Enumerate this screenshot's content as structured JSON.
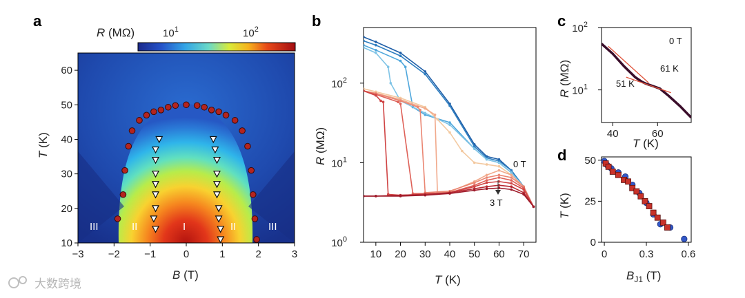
{
  "watermark": "大数跨境",
  "chart_data": [
    {
      "panel": "a",
      "type": "heatmap",
      "xlabel": {
        "var": "B",
        "unit": " (T)"
      },
      "ylabel": {
        "var": "T",
        "unit": " (K)"
      },
      "xlim": [
        -3,
        3
      ],
      "ylim": [
        10,
        65
      ],
      "xticks": [
        "−3",
        "−2",
        "−1",
        "0",
        "1",
        "2",
        "3"
      ],
      "yticks": [
        "10",
        "20",
        "30",
        "40",
        "50",
        "60"
      ],
      "colorbar": {
        "label_var": "R",
        "label_unit": " (MΩ)",
        "scale": "log",
        "range": [
          4,
          300
        ],
        "ticks": [
          "10",
          "10"
        ],
        "tick_exponents": [
          "1",
          "2"
        ]
      },
      "region_labels": [
        "III",
        "II",
        "I",
        "II",
        "III"
      ],
      "boundary_circles": [
        {
          "B": -1.9,
          "T": 17
        },
        {
          "B": -1.75,
          "T": 24
        },
        {
          "B": -1.7,
          "T": 31
        },
        {
          "B": -1.6,
          "T": 38
        },
        {
          "B": -1.5,
          "T": 42.5
        },
        {
          "B": -1.3,
          "T": 45.5
        },
        {
          "B": -1.1,
          "T": 47
        },
        {
          "B": -0.9,
          "T": 48
        },
        {
          "B": -0.7,
          "T": 48.5
        },
        {
          "B": -0.5,
          "T": 49.3
        },
        {
          "B": -0.3,
          "T": 49.8
        },
        {
          "B": 0,
          "T": 50
        },
        {
          "B": 0.3,
          "T": 49.8
        },
        {
          "B": 0.5,
          "T": 49.3
        },
        {
          "B": 0.7,
          "T": 48.5
        },
        {
          "B": 0.9,
          "T": 48
        },
        {
          "B": 1.1,
          "T": 47
        },
        {
          "B": 1.35,
          "T": 45.5
        },
        {
          "B": 1.55,
          "T": 42.5
        },
        {
          "B": 1.7,
          "T": 38
        },
        {
          "B": 1.8,
          "T": 31
        },
        {
          "B": 1.85,
          "T": 24
        },
        {
          "B": 1.9,
          "T": 17
        },
        {
          "B": 1.95,
          "T": 11
        }
      ],
      "triangles": [
        {
          "B": -0.75,
          "T": 40
        },
        {
          "B": -0.85,
          "T": 37
        },
        {
          "B": -0.85,
          "T": 34
        },
        {
          "B": -0.85,
          "T": 30
        },
        {
          "B": -0.85,
          "T": 27
        },
        {
          "B": -0.85,
          "T": 24
        },
        {
          "B": -0.85,
          "T": 20
        },
        {
          "B": -0.9,
          "T": 17
        },
        {
          "B": -0.85,
          "T": 14
        },
        {
          "B": 0.75,
          "T": 40
        },
        {
          "B": 0.8,
          "T": 37
        },
        {
          "B": 0.85,
          "T": 34
        },
        {
          "B": 0.85,
          "T": 30
        },
        {
          "B": 0.85,
          "T": 27
        },
        {
          "B": 0.85,
          "T": 24
        },
        {
          "B": 0.9,
          "T": 20
        },
        {
          "B": 0.9,
          "T": 17
        },
        {
          "B": 0.95,
          "T": 14
        },
        {
          "B": 0.95,
          "T": 11
        }
      ]
    },
    {
      "panel": "b",
      "type": "line",
      "xlabel": {
        "var": "T",
        "unit": " (K)"
      },
      "ylabel": {
        "var": "R",
        "unit": " (MΩ)"
      },
      "xlim": [
        5,
        75
      ],
      "ylim": [
        1,
        500
      ],
      "yscale": "log",
      "xticks": [
        "10",
        "20",
        "30",
        "40",
        "50",
        "60",
        "70"
      ],
      "yticks": [
        "10",
        "10",
        "10"
      ],
      "ytick_exponents": [
        "0",
        "1",
        "2"
      ],
      "field_labels": [
        "0 T",
        "3 T"
      ],
      "series": [
        {
          "values_x": [
            5,
            10,
            20,
            30,
            40,
            50,
            55,
            60,
            65,
            70,
            74
          ],
          "values_y": [
            380,
            330,
            240,
            140,
            55,
            17,
            12,
            11,
            8,
            5,
            2.8
          ]
        },
        {
          "values_x": [
            5,
            10,
            20,
            30,
            40,
            50,
            55,
            60,
            65,
            70,
            74
          ],
          "values_y": [
            340,
            300,
            220,
            130,
            52,
            16,
            11.5,
            10.5,
            8,
            5,
            2.8
          ]
        },
        {
          "values_x": [
            5,
            10,
            20,
            22,
            25,
            30,
            40,
            50,
            55,
            60,
            65,
            70,
            74
          ],
          "values_y": [
            300,
            260,
            190,
            160,
            50,
            40,
            32,
            15,
            11,
            10,
            7.5,
            5,
            2.8
          ]
        },
        {
          "values_x": [
            5,
            10,
            15,
            16,
            20,
            30,
            40,
            50,
            55,
            60,
            65,
            70,
            74
          ],
          "values_y": [
            280,
            240,
            160,
            100,
            60,
            42,
            30,
            15,
            11,
            10,
            7.5,
            5,
            2.8
          ]
        },
        {
          "values_x": [
            5,
            10,
            20,
            30,
            35,
            40,
            45,
            50,
            55,
            60,
            65,
            70,
            74
          ],
          "values_y": [
            85,
            78,
            65,
            50,
            35,
            24,
            14,
            10,
            9.5,
            9,
            7,
            5,
            2.8
          ]
        },
        {
          "values_x": [
            5,
            10,
            20,
            30,
            34,
            35,
            40,
            50,
            55,
            60,
            65,
            70,
            74
          ],
          "values_y": [
            80,
            75,
            62,
            48,
            40,
            4.2,
            4.3,
            5.8,
            7,
            8,
            7,
            5,
            2.8
          ]
        },
        {
          "values_x": [
            5,
            10,
            20,
            27,
            28,
            30,
            40,
            50,
            55,
            60,
            65,
            70,
            74
          ],
          "values_y": [
            80,
            74,
            60,
            50,
            46,
            4.2,
            4.4,
            5.6,
            6.5,
            7,
            6.5,
            5,
            2.8
          ]
        },
        {
          "values_x": [
            5,
            10,
            19,
            20,
            25,
            30,
            40,
            50,
            55,
            60,
            65,
            70,
            74
          ],
          "values_y": [
            80,
            72,
            58,
            55,
            4.1,
            4.1,
            4.2,
            5.2,
            6,
            6.5,
            6,
            4.8,
            2.8
          ]
        },
        {
          "values_x": [
            5,
            10,
            12,
            13,
            15,
            20,
            30,
            40,
            50,
            55,
            60,
            65,
            70,
            74
          ],
          "values_y": [
            80,
            70,
            60,
            58,
            4.0,
            3.9,
            4.0,
            4.2,
            5.0,
            5.6,
            5.8,
            5.5,
            4.6,
            2.8
          ]
        },
        {
          "values_x": [
            5,
            10,
            20,
            30,
            40,
            50,
            55,
            60,
            65,
            70,
            74
          ],
          "values_y": [
            3.8,
            3.8,
            3.9,
            4.0,
            4.2,
            4.7,
            5.0,
            5.2,
            5.0,
            4.2,
            2.8
          ]
        },
        {
          "values_x": [
            5,
            10,
            20,
            30,
            40,
            50,
            55,
            60,
            65,
            70,
            74
          ],
          "values_y": [
            3.8,
            3.8,
            3.8,
            3.9,
            4.1,
            4.5,
            4.7,
            4.8,
            4.6,
            4.0,
            2.8
          ]
        }
      ]
    },
    {
      "panel": "c",
      "type": "line",
      "xlabel": {
        "var": "T",
        "unit": " (K)"
      },
      "ylabel": {
        "var": "R",
        "unit": " (MΩ)"
      },
      "xlim": [
        35,
        75
      ],
      "ylim": [
        3,
        100
      ],
      "yscale": "log",
      "xticks": [
        "40",
        "60"
      ],
      "yticks": [
        "10",
        "10"
      ],
      "ytick_exponents": [
        "1",
        "2"
      ],
      "field_label": "0 T",
      "annotations": [
        "51 K",
        "61 K"
      ],
      "values_x": [
        35,
        40,
        45,
        50,
        53,
        55,
        58,
        61,
        65,
        70,
        75
      ],
      "values_y": [
        55,
        38,
        24,
        16,
        13.5,
        12.5,
        11.5,
        10.5,
        8,
        5.5,
        3.6
      ]
    },
    {
      "panel": "d",
      "type": "scatter",
      "xlabel": {
        "var": "B",
        "sub": "J1",
        "unit": " (T)"
      },
      "ylabel": {
        "var": "T",
        "unit": " (K)"
      },
      "xlim": [
        -0.02,
        0.62
      ],
      "ylim": [
        0,
        52
      ],
      "xticks": [
        "0",
        "0.3",
        "0.6"
      ],
      "yticks": [
        "0",
        "25",
        "50"
      ],
      "series": [
        {
          "marker": "circle",
          "values_x": [
            0.0,
            0.02,
            0.05,
            0.1,
            0.15,
            0.2,
            0.25,
            0.3,
            0.35,
            0.4,
            0.47,
            0.57
          ],
          "values_y": [
            49.5,
            47,
            45,
            42.5,
            40,
            35,
            30,
            24,
            17,
            11,
            9,
            2
          ]
        },
        {
          "marker": "square",
          "values_x": [
            0.01,
            0.03,
            0.06,
            0.1,
            0.14,
            0.17,
            0.2,
            0.23,
            0.26,
            0.29,
            0.32,
            0.35,
            0.38,
            0.42,
            0.45
          ],
          "values_y": [
            48,
            46,
            43,
            41,
            38,
            37,
            33,
            31,
            28,
            25,
            22,
            18,
            15,
            12,
            9
          ]
        }
      ]
    }
  ]
}
